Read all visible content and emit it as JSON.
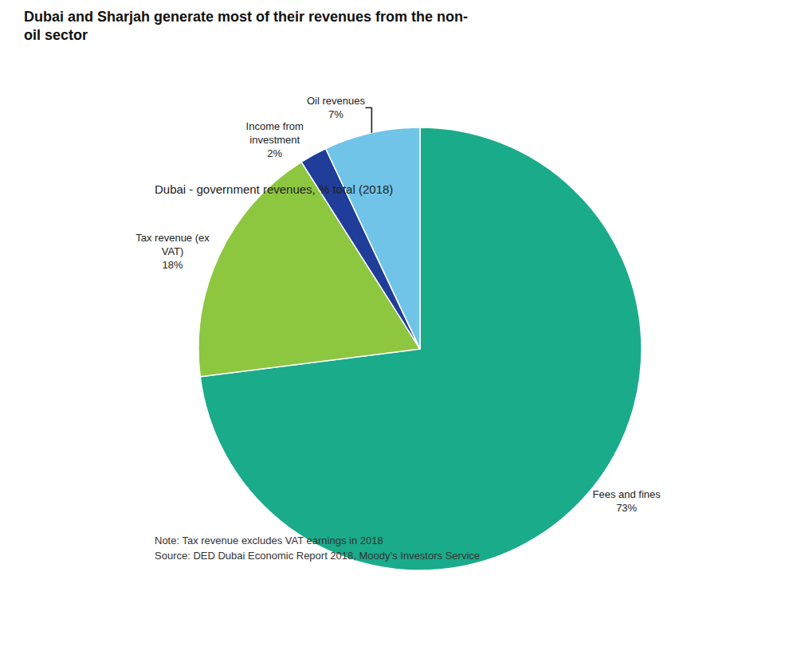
{
  "chart_data": {
    "type": "pie",
    "title": "Dubai and Sharjah generate most of their revenues from the non-\noil sector",
    "subtitle": "Dubai - government revenues, % total (2018)",
    "categories": [
      "Fees and fines",
      "Tax revenue (ex\nVAT)",
      "Income from\ninvestment",
      "Oil revenues"
    ],
    "values": [
      73,
      18,
      2,
      7
    ],
    "value_labels": [
      "73%",
      "18%",
      "2%",
      "7%"
    ],
    "colors": [
      "#1aab8a",
      "#8dc63f",
      "#1f3d99",
      "#70c4e8"
    ],
    "data_labels": true,
    "annotations": [
      "Note: Tax revenue excludes VAT earnings in 2018",
      "Source: DED Dubai Economic Report 2018, Moody’s Investors Service"
    ]
  }
}
